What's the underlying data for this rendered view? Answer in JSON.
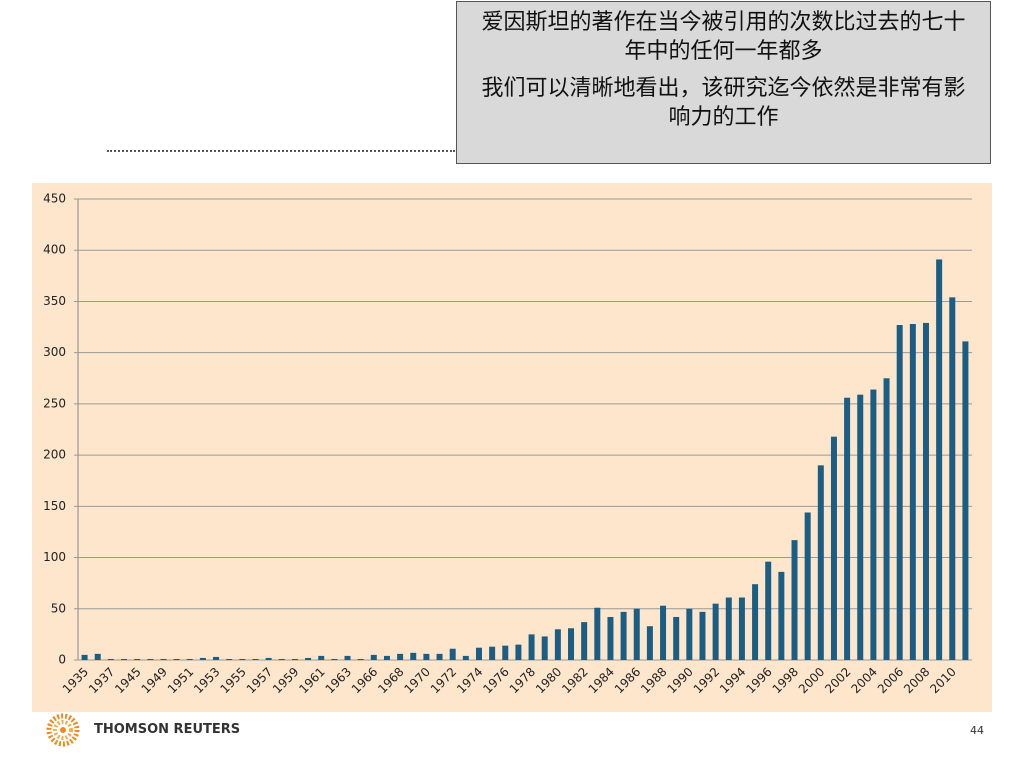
{
  "callout": [
    "爱因斯坦的著作在当今被引用的次数比过去的七十年中的任何一年都多",
    "我们可以清晰地看出，该研究迄今依然是非常有影响力的工作"
  ],
  "footer": {
    "brand": "THOMSON REUTERS",
    "page": 44
  },
  "chart_data": {
    "type": "bar",
    "color": "#1b5e85",
    "categories": [
      "1935",
      null,
      "1937",
      null,
      "1945",
      null,
      "1949",
      null,
      "1951",
      null,
      "1953",
      null,
      "1955",
      null,
      "1957",
      null,
      "1959",
      null,
      "1961",
      null,
      "1963",
      null,
      "1966",
      null,
      "1968",
      null,
      "1970",
      null,
      "1972",
      null,
      "1974",
      null,
      "1976",
      null,
      "1978",
      null,
      "1980",
      null,
      "1982",
      null,
      "1984",
      null,
      "1986",
      null,
      "1988",
      null,
      "1990",
      null,
      "1992",
      null,
      "1994",
      null,
      "1996",
      null,
      "1998",
      null,
      "2000",
      null,
      "2002",
      null,
      "2004",
      null,
      "2006",
      null,
      "2008",
      null,
      "2010",
      null
    ],
    "values": [
      5,
      6,
      1,
      1,
      1,
      1,
      1,
      1,
      1,
      2,
      3,
      1,
      1,
      1,
      2,
      1,
      1,
      2,
      4,
      1,
      4,
      1,
      5,
      4,
      6,
      7,
      6,
      6,
      11,
      4,
      12,
      13,
      14,
      15,
      25,
      23,
      30,
      31,
      37,
      51,
      42,
      47,
      50,
      33,
      53,
      42,
      50,
      47,
      55,
      61,
      61,
      74,
      96,
      86,
      117,
      144,
      190,
      218,
      256,
      259,
      264,
      275,
      327,
      328,
      329,
      391,
      354,
      311
    ],
    "ylim": [
      0,
      450
    ],
    "yticks": [
      0,
      50,
      100,
      150,
      200,
      250,
      300,
      350,
      400,
      450
    ],
    "grid": true
  }
}
